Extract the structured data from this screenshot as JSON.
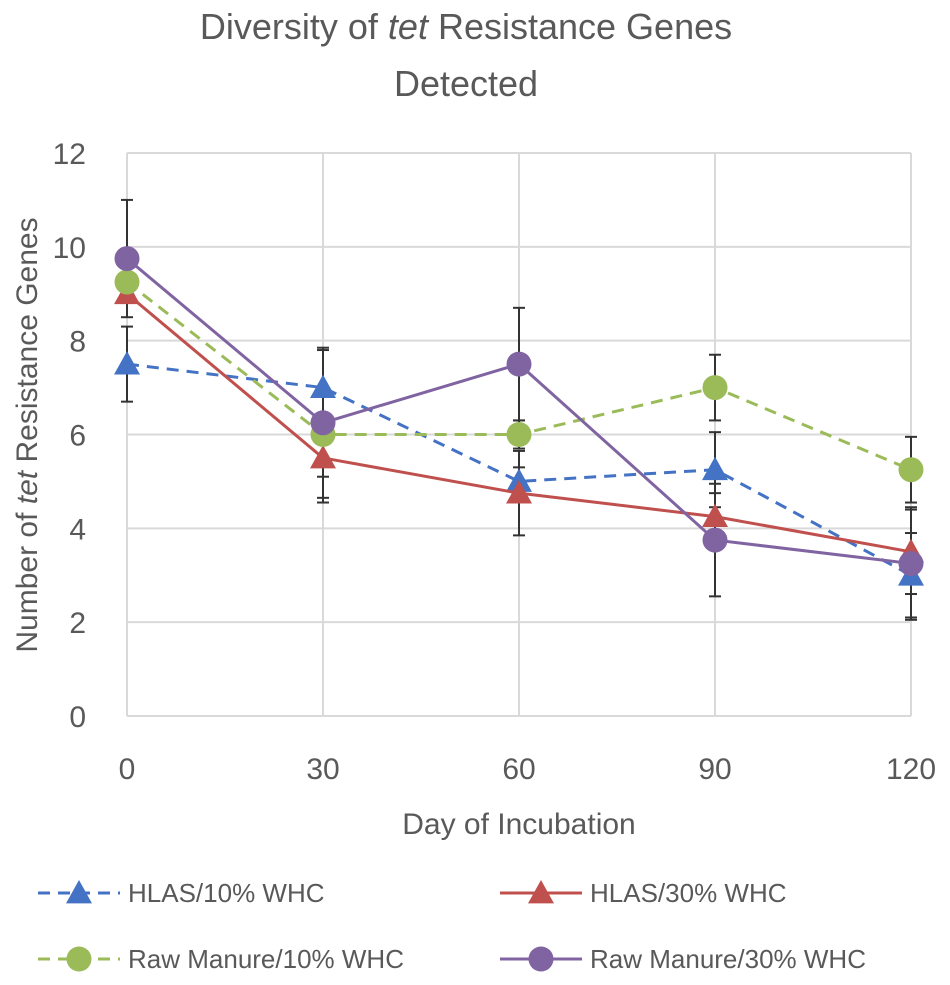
{
  "chart_data": {
    "type": "line",
    "title": {
      "line1_pre": "Diversity of ",
      "line1_em": "tet",
      "line1_post": " Resistance Genes",
      "line2": "Detected"
    },
    "xlabel": "Day of Incubation",
    "ylabel": {
      "pre": "Number of ",
      "em": "tet",
      "post": " Resistance Genes"
    },
    "x": [
      0,
      30,
      60,
      90,
      120
    ],
    "x_tick_labels": [
      "0",
      "30",
      "60",
      "90",
      "120"
    ],
    "y_ticks": [
      0,
      2,
      4,
      6,
      8,
      10,
      12
    ],
    "y_tick_labels": [
      "0",
      "2",
      "4",
      "6",
      "8",
      "10",
      "12"
    ],
    "xlim": [
      0,
      120
    ],
    "ylim": [
      0,
      12
    ],
    "grid": true,
    "legend_position": "bottom",
    "series": [
      {
        "name": "HLAS/10% WHC",
        "color": "#4472C4",
        "line_style": "dashed",
        "marker": "triangle",
        "values": [
          7.5,
          7.0,
          5.0,
          5.25,
          3.0
        ],
        "error": [
          0.8,
          0.8,
          0.3,
          0.8,
          0.9
        ]
      },
      {
        "name": "HLAS/30% WHC",
        "color": "#C0504D",
        "line_style": "solid",
        "marker": "triangle",
        "values": [
          9.0,
          5.5,
          4.75,
          4.25,
          3.5
        ],
        "error": [
          0,
          0.95,
          0.9,
          0.5,
          0.9
        ]
      },
      {
        "name": "Raw Manure/10% WHC",
        "color": "#9BBB59",
        "line_style": "dashed",
        "marker": "circle",
        "values": [
          9.25,
          6.0,
          6.0,
          7.0,
          5.25
        ],
        "error": [
          0,
          0.9,
          0.3,
          0.7,
          0.7
        ]
      },
      {
        "name": "Raw Manure/30% WHC",
        "color": "#8064A2",
        "line_style": "solid",
        "marker": "circle",
        "values": [
          9.75,
          6.25,
          7.5,
          3.75,
          3.25
        ],
        "error": [
          1.25,
          1.6,
          1.2,
          1.2,
          1.2
        ]
      }
    ]
  }
}
